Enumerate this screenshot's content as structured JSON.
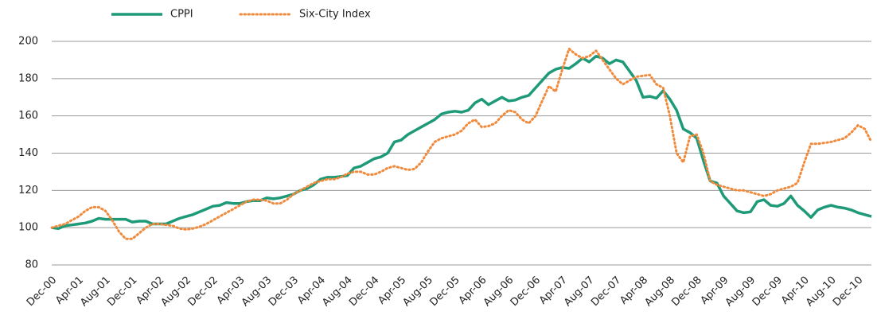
{
  "chart_data": {
    "type": "line",
    "categories": [
      "Dec-00",
      null,
      null,
      null,
      "Apr-01",
      null,
      null,
      null,
      "Aug-01",
      null,
      null,
      null,
      "Dec-01",
      null,
      null,
      null,
      "Apr-02",
      null,
      null,
      null,
      "Aug-02",
      null,
      null,
      null,
      "Dec-02",
      null,
      null,
      null,
      "Apr-03",
      null,
      null,
      null,
      "Aug-03",
      null,
      null,
      null,
      "Dec-03",
      null,
      null,
      null,
      "Apr-04",
      null,
      null,
      null,
      "Aug-04",
      null,
      null,
      null,
      "Dec-04",
      null,
      null,
      null,
      "Apr-05",
      null,
      null,
      null,
      "Aug-05",
      null,
      null,
      null,
      "Dec-05",
      null,
      null,
      null,
      "Apr-06",
      null,
      null,
      null,
      "Aug-06",
      null,
      null,
      null,
      "Dec-06",
      null,
      null,
      null,
      "Apr-07",
      null,
      null,
      null,
      "Aug-07",
      null,
      null,
      null,
      "Dec-07",
      null,
      null,
      null,
      "Apr-08",
      null,
      null,
      null,
      "Aug-08",
      null,
      null,
      null,
      "Dec-08",
      null,
      null,
      null,
      "Apr-09",
      null,
      null,
      null,
      "Aug-09",
      null,
      null,
      null,
      "Dec-09",
      null,
      null,
      null,
      "Apr-10",
      null,
      null,
      null,
      "Aug-10",
      null,
      null,
      null,
      "Dec-10",
      null,
      null
    ],
    "series": [
      {
        "name": "CPPI",
        "color": "#1e9a78",
        "style": "solid",
        "values": [
          100,
          99.5,
          101,
          101.5,
          102,
          102.5,
          103.5,
          105,
          104.5,
          104.5,
          104.5,
          104.5,
          103,
          103.5,
          103.5,
          102,
          102,
          102,
          103.5,
          105,
          106,
          107,
          108.5,
          110,
          111.5,
          112,
          113.5,
          113,
          113,
          114,
          114.5,
          114.5,
          116,
          115.5,
          116,
          117,
          118,
          120,
          121,
          123,
          126,
          127,
          127,
          127.5,
          128,
          132,
          133,
          135,
          137,
          138,
          140,
          146,
          147,
          150,
          152,
          154,
          156,
          158,
          161,
          162,
          162.5,
          162,
          163,
          167,
          169,
          166,
          168,
          170,
          168,
          168.5,
          170,
          171,
          175,
          179,
          183,
          185,
          186,
          185.5,
          188,
          191,
          189,
          192,
          191,
          188,
          190,
          189,
          184,
          179,
          170,
          170.5,
          169.5,
          173.5,
          169,
          163,
          153,
          151,
          148,
          136,
          125,
          124,
          117,
          113,
          109,
          108,
          108.5,
          114,
          115,
          112,
          111.5,
          113,
          117,
          112,
          109,
          105.5,
          109.5,
          111,
          112,
          111,
          110.5,
          109.5,
          108,
          107,
          106
        ]
      },
      {
        "name": "Six-City Index",
        "color": "#f08a3c",
        "style": "dotted",
        "values": [
          100,
          101,
          102,
          104,
          106,
          109,
          111,
          111,
          109,
          104,
          98,
          94,
          94,
          97,
          100,
          102,
          102,
          101.5,
          101,
          99.5,
          99,
          99.5,
          100.5,
          102,
          104,
          106,
          108,
          110,
          112,
          114,
          115,
          115,
          114.5,
          113,
          113,
          115,
          118,
          120,
          122,
          124,
          125,
          126,
          126,
          127,
          129,
          130,
          130,
          128.5,
          128.5,
          130,
          132,
          133,
          132,
          131,
          131.5,
          135,
          141,
          146,
          148,
          149,
          150,
          152,
          156,
          158,
          154,
          154.5,
          156,
          160,
          163,
          162,
          158,
          156,
          160,
          168,
          176,
          173,
          185,
          196,
          193,
          191,
          192,
          195,
          190,
          185,
          180,
          177,
          179,
          181,
          181.5,
          182,
          177,
          175,
          160,
          140,
          135,
          149,
          150,
          140,
          125,
          123,
          122,
          121,
          120,
          120,
          119,
          118,
          117,
          118,
          120,
          121,
          122,
          124,
          135,
          145,
          145,
          145.5,
          146,
          147,
          148,
          151,
          155,
          153,
          146
        ]
      }
    ],
    "ylim": [
      80,
      200
    ],
    "yticks": [
      80,
      100,
      120,
      140,
      160,
      180,
      200
    ],
    "grid": true,
    "legend": "top-left"
  }
}
